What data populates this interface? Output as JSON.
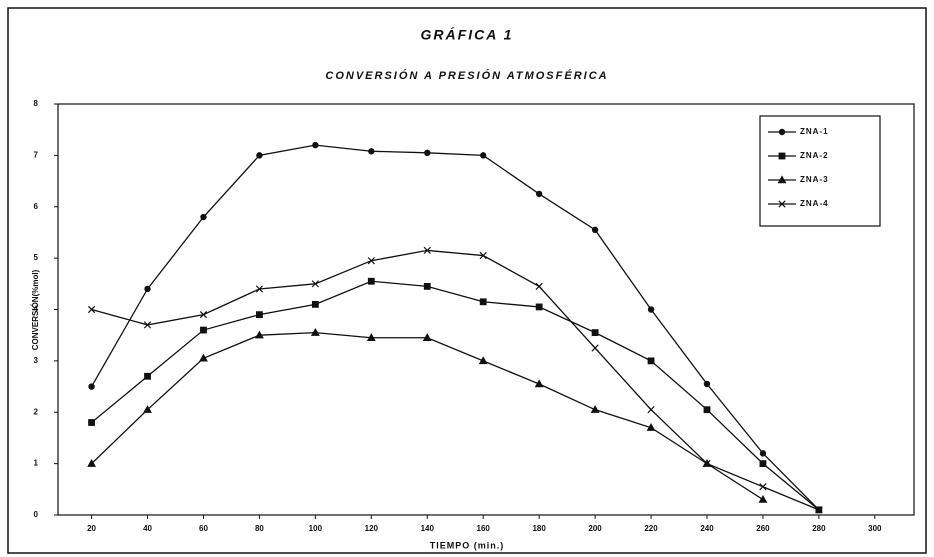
{
  "chart_data": {
    "type": "line",
    "title": "GRÁFICA 1",
    "subtitle": "CONVERSIÓN A PRESIÓN ATMOSFÉRICA",
    "x_label": "TIEMPO (min.)",
    "y_label": "CONVERSIÓN(%mol)",
    "x": [
      20,
      40,
      60,
      80,
      100,
      120,
      140,
      160,
      180,
      200,
      220,
      240,
      260,
      280
    ],
    "series": [
      {
        "name": "ZNA-1",
        "color": "#111111",
        "marker": "circle",
        "values": [
          2.5,
          4.4,
          5.8,
          7.0,
          7.2,
          7.08,
          7.05,
          7.0,
          6.25,
          5.55,
          4.0,
          2.55,
          1.2,
          0.1
        ]
      },
      {
        "name": "ZNA-2",
        "color": "#111111",
        "marker": "square",
        "values": [
          1.8,
          2.7,
          3.6,
          3.9,
          4.1,
          4.55,
          4.45,
          4.15,
          4.05,
          3.55,
          3.0,
          2.05,
          1.0,
          0.1
        ]
      },
      {
        "name": "ZNA-3",
        "color": "#111111",
        "marker": "triangle",
        "values": [
          1.0,
          2.05,
          3.05,
          3.5,
          3.55,
          3.45,
          3.45,
          3.0,
          2.55,
          2.05,
          1.7,
          1.0,
          0.3,
          null
        ]
      },
      {
        "name": "ZNA-4",
        "color": "#111111",
        "marker": "x",
        "values": [
          4.0,
          3.7,
          3.9,
          4.4,
          4.5,
          4.95,
          5.15,
          5.05,
          4.45,
          3.25,
          2.05,
          1.0,
          0.55,
          0.1
        ]
      }
    ],
    "xlim": [
      8,
      314
    ],
    "xticks": [
      20,
      40,
      60,
      80,
      100,
      120,
      140,
      160,
      180,
      200,
      220,
      240,
      260,
      280,
      300
    ],
    "ylim": [
      0,
      8
    ],
    "yticks": [
      0,
      1,
      2,
      3,
      4,
      5,
      6,
      7,
      8
    ],
    "legend": "upper right"
  }
}
